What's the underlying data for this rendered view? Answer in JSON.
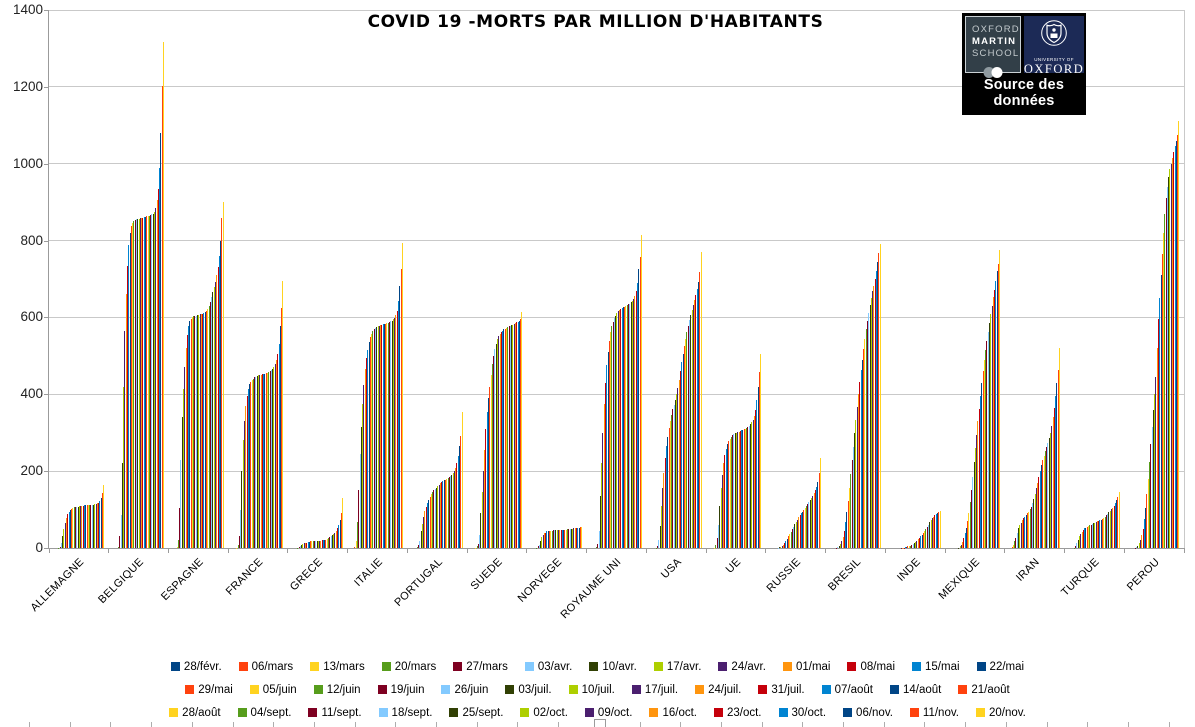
{
  "logo": {
    "oms_lines": [
      "OXFORD",
      "MARTIN",
      "SCHOOL"
    ],
    "university_caption": "UNIVERSITY OF",
    "university_name": "OXFORD",
    "source_label": "Source des données"
  },
  "chart_data": {
    "type": "bar",
    "title": "COVID 19 -MORTS PAR MILLION D'HABITANTS",
    "ylim": [
      0,
      1400
    ],
    "ytick_step": 200,
    "yticks": [
      0,
      200,
      400,
      600,
      800,
      1000,
      1200,
      1400
    ],
    "grid": true,
    "legend_position": "bottom",
    "legend_items_per_row": 13,
    "palette": [
      "#004586",
      "#FF420E",
      "#FFD320",
      "#579D1C",
      "#7E0021",
      "#83CAFF",
      "#314004",
      "#AECF00",
      "#4B1F6F",
      "#FF950E",
      "#C5000B",
      "#0084D1"
    ],
    "categories": [
      "ALLEMAGNE",
      "BELGIQUE",
      "ESPAGNE",
      "FRANCE",
      "GRECE",
      "ITALIE",
      "PORTUGAL",
      "SUEDE",
      "NORVEGE",
      "ROYAUME UNI",
      "USA",
      "UE",
      "RUSSIE",
      "BRESIL",
      "INDE",
      "MEXIQUE",
      "IRAN",
      "TURQUE",
      "PEROU"
    ],
    "series_dates": [
      "28/févr.",
      "06/mars",
      "13/mars",
      "20/mars",
      "27/mars",
      "03/avr.",
      "10/avr.",
      "17/avr.",
      "24/avr.",
      "01/mai",
      "08/mai",
      "15/mai",
      "22/mai",
      "29/mai",
      "05/juin",
      "12/juin",
      "19/juin",
      "26/juin",
      "03/juil.",
      "10/juil.",
      "17/juil.",
      "24/juil.",
      "31/juil.",
      "07/août",
      "14/août",
      "21/août",
      "28/août",
      "04/sept.",
      "11/sept.",
      "18/sept.",
      "25/sept.",
      "02/oct.",
      "09/oct.",
      "16/oct.",
      "23/oct.",
      "30/oct.",
      "06/nov.",
      "11/nov.",
      "20/nov."
    ],
    "values_by_country": {
      "ALLEMAGNE": [
        0,
        0,
        0,
        1,
        3,
        13,
        31,
        49,
        66,
        79,
        89,
        95,
        99,
        102,
        104,
        106,
        107,
        108,
        108,
        109,
        109,
        110,
        110,
        111,
        111,
        111,
        112,
        112,
        112,
        113,
        113,
        114,
        115,
        116,
        118,
        122,
        130,
        142,
        163
      ],
      "BELGIQUE": [
        0,
        0,
        0,
        3,
        31,
        85,
        220,
        420,
        565,
        660,
        735,
        788,
        820,
        838,
        846,
        850,
        853,
        855,
        856,
        857,
        858,
        859,
        860,
        861,
        862,
        863,
        864,
        865,
        866,
        868,
        870,
        875,
        885,
        905,
        935,
        988,
        1080,
        1203,
        1316
      ],
      "ESPAGNE": [
        0,
        0,
        2,
        22,
        105,
        230,
        340,
        415,
        470,
        520,
        555,
        578,
        591,
        597,
        601,
        603,
        604,
        605,
        606,
        607,
        608,
        609,
        610,
        612,
        615,
        618,
        622,
        630,
        640,
        652,
        665,
        678,
        692,
        710,
        732,
        760,
        800,
        858,
        900
      ],
      "FRANCE": [
        0,
        0,
        1,
        7,
        30,
        98,
        200,
        280,
        330,
        370,
        395,
        415,
        426,
        432,
        437,
        441,
        444,
        446,
        448,
        449,
        450,
        451,
        452,
        453,
        454,
        455,
        456,
        458,
        460,
        462,
        466,
        471,
        478,
        488,
        505,
        532,
        578,
        625,
        695
      ],
      "GRECE": [
        0,
        0,
        0,
        1,
        3,
        5,
        8,
        10,
        12,
        13,
        14,
        15,
        16,
        17,
        17,
        17,
        18,
        18,
        18,
        18,
        19,
        19,
        20,
        20,
        21,
        22,
        24,
        26,
        28,
        30,
        33,
        36,
        40,
        45,
        52,
        60,
        73,
        90,
        130
      ],
      "ITALIE": [
        0,
        3,
        17,
        67,
        152,
        245,
        315,
        375,
        425,
        465,
        495,
        515,
        535,
        548,
        557,
        564,
        569,
        573,
        576,
        578,
        579,
        580,
        581,
        582,
        583,
        584,
        585,
        586,
        588,
        590,
        592,
        595,
        599,
        606,
        618,
        642,
        683,
        725,
        795
      ],
      "PORTUGAL": [
        0,
        0,
        0,
        2,
        7,
        18,
        43,
        62,
        80,
        96,
        108,
        118,
        126,
        133,
        140,
        146,
        150,
        153,
        157,
        161,
        165,
        168,
        172,
        174,
        176,
        178,
        180,
        182,
        184,
        187,
        190,
        195,
        200,
        208,
        220,
        240,
        265,
        292,
        355
      ],
      "SUEDE": [
        0,
        0,
        1,
        4,
        10,
        35,
        90,
        145,
        200,
        255,
        310,
        355,
        390,
        420,
        450,
        478,
        500,
        517,
        532,
        543,
        551,
        557,
        562,
        566,
        569,
        571,
        573,
        575,
        577,
        578,
        580,
        581,
        583,
        585,
        587,
        589,
        592,
        597,
        615
      ],
      "NORVEGE": [
        0,
        0,
        0,
        1,
        4,
        9,
        19,
        28,
        34,
        38,
        40,
        43,
        44,
        44,
        45,
        45,
        46,
        46,
        46,
        47,
        47,
        47,
        47,
        48,
        48,
        48,
        48,
        49,
        49,
        49,
        50,
        50,
        51,
        51,
        52,
        52,
        53,
        54,
        55
      ],
      "ROYAUME UNI": [
        0,
        0,
        0,
        3,
        11,
        45,
        135,
        220,
        300,
        375,
        430,
        475,
        510,
        540,
        562,
        577,
        589,
        598,
        605,
        611,
        616,
        619,
        622,
        624,
        626,
        628,
        630,
        632,
        634,
        636,
        639,
        643,
        648,
        656,
        668,
        690,
        725,
        758,
        815
      ],
      "USA": [
        0,
        0,
        0,
        1,
        5,
        21,
        56,
        110,
        155,
        195,
        235,
        265,
        290,
        312,
        330,
        347,
        361,
        373,
        386,
        400,
        417,
        437,
        460,
        483,
        505,
        525,
        545,
        563,
        578,
        593,
        607,
        620,
        633,
        646,
        659,
        673,
        693,
        718,
        770
      ],
      "UE": [
        0,
        0,
        1,
        8,
        25,
        60,
        110,
        155,
        190,
        220,
        242,
        258,
        270,
        278,
        284,
        289,
        293,
        296,
        298,
        300,
        302,
        303,
        305,
        306,
        308,
        309,
        311,
        313,
        315,
        318,
        322,
        327,
        334,
        344,
        360,
        385,
        420,
        458,
        505
      ],
      "RUSSIE": [
        0,
        0,
        0,
        0,
        0,
        1,
        2,
        3,
        5,
        7,
        12,
        17,
        23,
        30,
        36,
        42,
        49,
        55,
        62,
        68,
        74,
        80,
        85,
        90,
        95,
        100,
        105,
        110,
        114,
        119,
        124,
        129,
        135,
        142,
        150,
        160,
        172,
        195,
        235
      ],
      "BRESIL": [
        0,
        0,
        0,
        0,
        1,
        2,
        5,
        10,
        17,
        28,
        45,
        67,
        93,
        122,
        155,
        192,
        228,
        263,
        298,
        333,
        368,
        400,
        432,
        462,
        490,
        518,
        545,
        570,
        592,
        612,
        632,
        650,
        668,
        683,
        700,
        720,
        745,
        768,
        790
      ],
      "INDE": [
        0,
        0,
        0,
        0,
        0,
        0,
        0,
        0,
        1,
        1,
        1,
        2,
        3,
        4,
        5,
        6,
        8,
        10,
        13,
        16,
        19,
        23,
        27,
        30,
        35,
        40,
        45,
        50,
        55,
        61,
        67,
        72,
        77,
        81,
        85,
        88,
        91,
        93,
        96
      ],
      "MEXIQUE": [
        0,
        0,
        0,
        0,
        0,
        0,
        1,
        4,
        8,
        15,
        25,
        38,
        52,
        70,
        90,
        120,
        150,
        185,
        225,
        260,
        295,
        330,
        362,
        395,
        430,
        460,
        490,
        515,
        540,
        562,
        585,
        608,
        630,
        652,
        672,
        695,
        722,
        740,
        776
      ],
      "IRAN": [
        0,
        2,
        7,
        17,
        27,
        38,
        51,
        59,
        66,
        72,
        77,
        81,
        86,
        90,
        95,
        101,
        108,
        117,
        128,
        140,
        155,
        170,
        186,
        200,
        215,
        228,
        240,
        252,
        262,
        274,
        287,
        300,
        318,
        340,
        365,
        395,
        430,
        462,
        520
      ],
      "TURQUE": [
        0,
        0,
        0,
        1,
        4,
        12,
        22,
        30,
        37,
        42,
        47,
        51,
        53,
        55,
        57,
        59,
        61,
        63,
        64,
        66,
        67,
        69,
        70,
        72,
        74,
        76,
        78,
        81,
        85,
        89,
        93,
        97,
        101,
        105,
        110,
        116,
        124,
        132,
        145
      ],
      "PEROU": [
        0,
        0,
        0,
        0,
        1,
        2,
        6,
        12,
        21,
        33,
        50,
        75,
        105,
        140,
        180,
        225,
        270,
        315,
        360,
        400,
        445,
        520,
        595,
        650,
        710,
        765,
        820,
        870,
        910,
        940,
        965,
        985,
        1000,
        1015,
        1030,
        1045,
        1060,
        1075,
        1110
      ]
    }
  }
}
